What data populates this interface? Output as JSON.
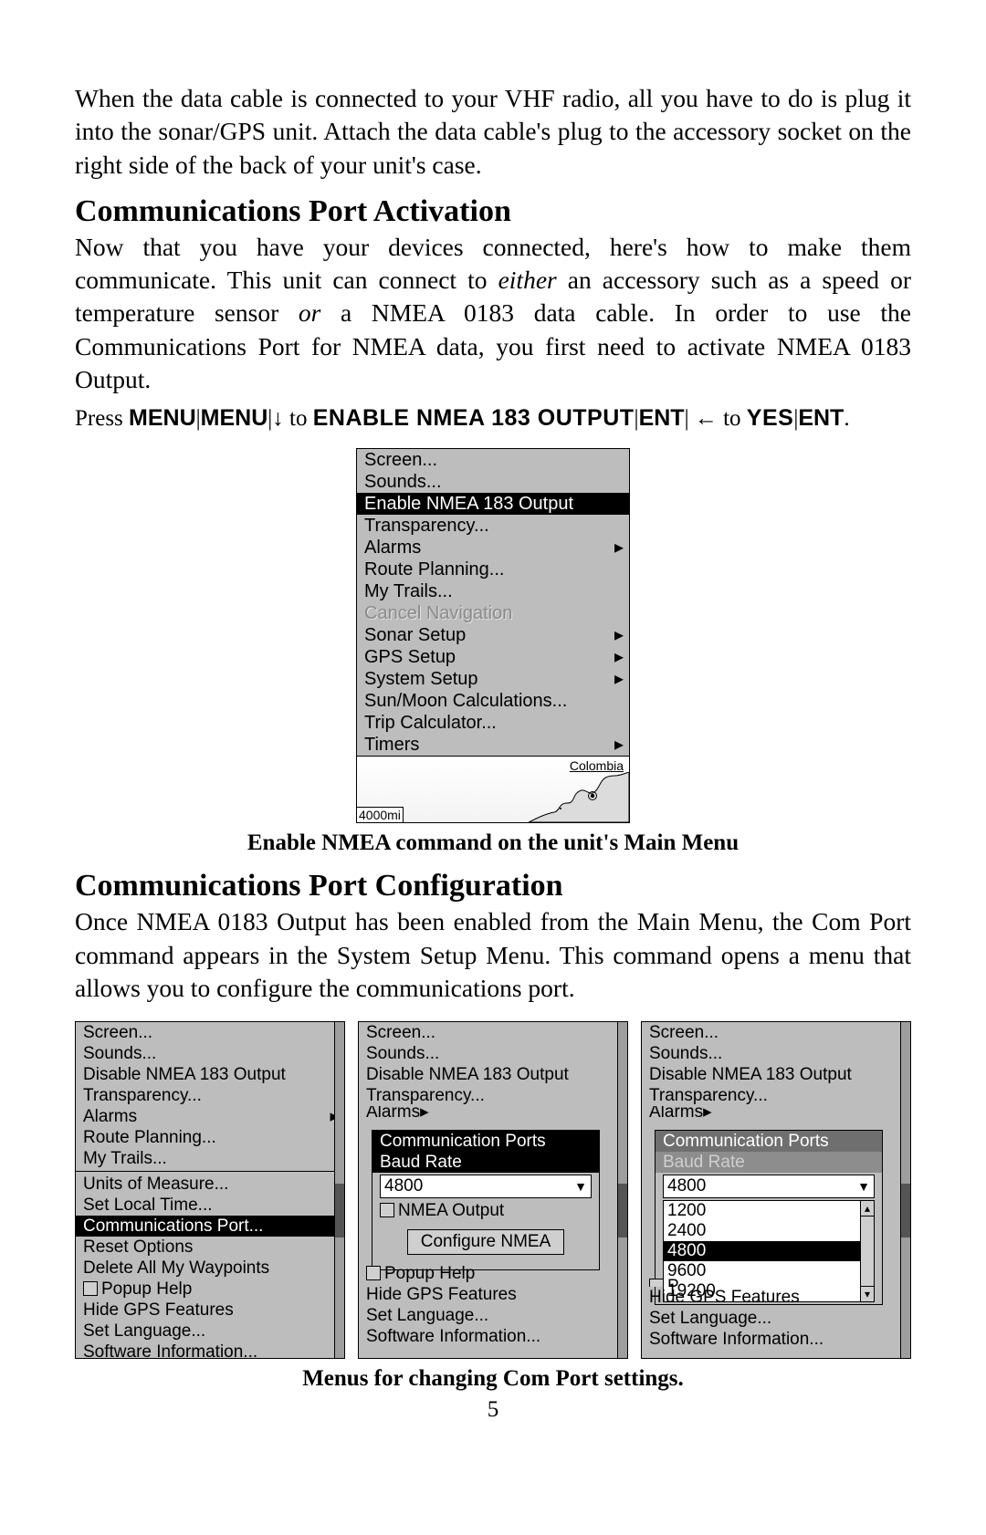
{
  "page_number": "5",
  "intro_para": "When the data cable is connected to your VHF radio, all you have to do is plug it into the sonar/GPS unit. Attach the data cable's plug to the accessory socket on the right side of the back of your unit's case.",
  "section1": {
    "heading": "Communications Port Activation",
    "para_part1": "Now that you have your devices connected, here's how to make them communicate. This unit can connect to ",
    "em1": "either",
    "para_part2": " an accessory such as a speed or temperature sensor ",
    "em2": "or",
    "para_part3": " a NMEA 0183 data cable. In order to use the Communications Port for NMEA data, you first need to activate NMEA 0183 Output.",
    "instr": {
      "press": "Press ",
      "menu": "MENU",
      "pipe": "|",
      "down": "↓",
      "to1": " to ",
      "enable": "ENABLE NMEA 183 OUTPUT",
      "ent": "ENT",
      "left": "←",
      "to2": " to ",
      "yes": "YES",
      "period": "."
    }
  },
  "main_menu": {
    "items": [
      {
        "label": "Screen...",
        "sel": false
      },
      {
        "label": "Sounds...",
        "sel": false
      },
      {
        "label": "Enable NMEA 183 Output",
        "sel": true
      },
      {
        "label": "Transparency...",
        "sel": false
      },
      {
        "label": "Alarms",
        "sel": false,
        "sub": true
      },
      {
        "label": "Route Planning...",
        "sel": false
      },
      {
        "label": "My Trails...",
        "sel": false
      },
      {
        "label": "Cancel Navigation",
        "sel": false,
        "dis": true
      },
      {
        "label": "Sonar Setup",
        "sel": false,
        "sub": true
      },
      {
        "label": "GPS Setup",
        "sel": false,
        "sub": true
      },
      {
        "label": "System Setup",
        "sel": false,
        "sub": true
      },
      {
        "label": "Sun/Moon Calculations...",
        "sel": false
      },
      {
        "label": "Trip Calculator...",
        "sel": false
      },
      {
        "label": "Timers",
        "sel": false,
        "sub": true
      }
    ],
    "map_label": "Colombia",
    "scale": "4000mi"
  },
  "caption1": "Enable NMEA command on the unit's Main Menu",
  "section2": {
    "heading": "Communications Port Configuration",
    "para": "Once NMEA 0183 Output has been enabled from the Main Menu, the Com Port command appears in the System Setup Menu. This command opens a menu that allows you to configure the communications port."
  },
  "triple_common_top": [
    "Screen...",
    "Sounds...",
    "Disable NMEA 183 Output",
    "Transparency..."
  ],
  "triple_common_bottom": [
    "Hide GPS Features",
    "Set Language...",
    "Software Information..."
  ],
  "shotA": {
    "alarms": "Alarms",
    "mid": [
      "Route Planning...",
      "My Trails..."
    ],
    "sys": [
      "Units of Measure...",
      "Set Local Time..."
    ],
    "sel": "Communications Port...",
    "after": [
      "Reset Options",
      "Delete All My Waypoints"
    ],
    "popup_help": "Popup Help"
  },
  "shotB": {
    "alarms": "Alarms",
    "popup_title": "Communication Ports",
    "baud_label": "Baud Rate",
    "baud_value": "4800",
    "nmea_out": "NMEA Output",
    "cfg_btn": "Configure NMEA",
    "popup_help": "Popup Help"
  },
  "shotC": {
    "alarms": "Alarms",
    "popup_title": "Communication Ports",
    "baud_label": "Baud Rate",
    "combo_value": "4800",
    "options": [
      "1200",
      "2400",
      "4800",
      "9600",
      "19200"
    ],
    "sel_option": "4800",
    "popup_help_prefix": "P"
  },
  "caption2": "Menus for changing Com Port settings.",
  "colors": {
    "screen_bg": "#bdbdbd",
    "sel_bg": "#000000",
    "sel_fg": "#ffffff",
    "disabled_fg": "#8a8a8a"
  }
}
